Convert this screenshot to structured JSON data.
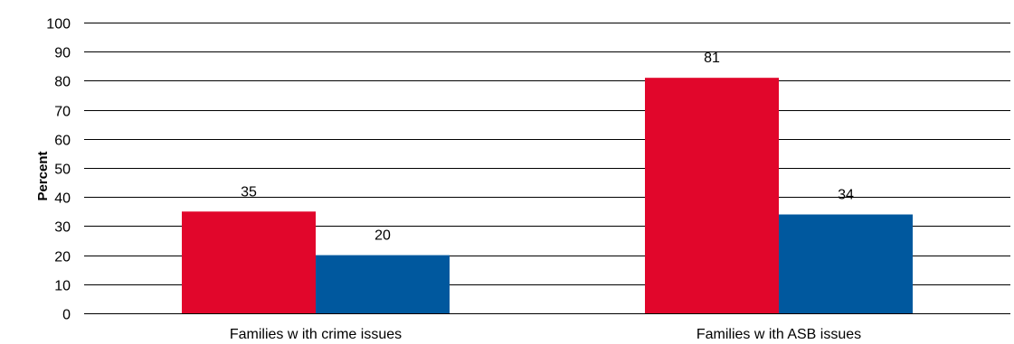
{
  "chart_data": {
    "type": "bar",
    "ylabel": "Percent",
    "xlabel": "",
    "ylim": [
      0,
      100
    ],
    "yticks": [
      0,
      10,
      20,
      30,
      40,
      50,
      60,
      70,
      80,
      90,
      100
    ],
    "grid": true,
    "categories": [
      "Families w ith crime issues",
      "Families w ith ASB issues"
    ],
    "series": [
      {
        "values": [
          35,
          81
        ],
        "color": "#e1062b"
      },
      {
        "values": [
          20,
          34
        ],
        "color": "#00589e"
      }
    ]
  }
}
